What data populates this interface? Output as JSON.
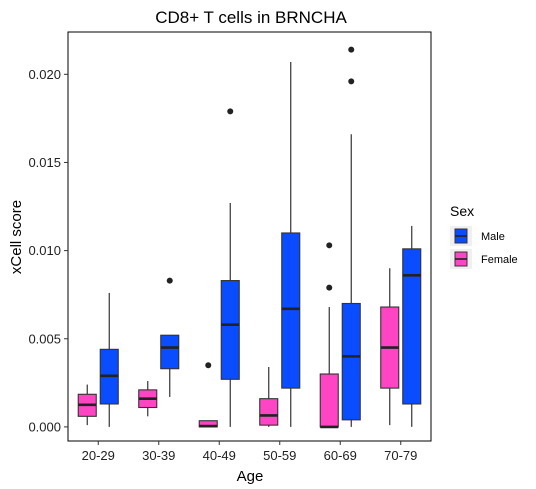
{
  "chart_data": {
    "type": "boxplot",
    "title": "CD8+ T cells in BRNCHA",
    "xlabel": "Age",
    "ylabel": "xCell score",
    "categories": [
      "20-29",
      "30-39",
      "40-49",
      "50-59",
      "60-69",
      "70-79"
    ],
    "ylim": [
      -0.0008,
      0.0224
    ],
    "yticks": [
      0.0,
      0.005,
      0.01,
      0.015,
      0.02
    ],
    "ytick_labels": [
      "0.000",
      "0.005",
      "0.010",
      "0.015",
      "0.020"
    ],
    "grid": false,
    "legend": {
      "title": "Sex",
      "placement": "right",
      "entries": [
        {
          "label": "Male",
          "color": "#0a4cff"
        },
        {
          "label": "Female",
          "color": "#ff44c4"
        }
      ]
    },
    "series": [
      {
        "name": "Female",
        "color": "#ff44c4",
        "boxes": [
          {
            "category": "20-29",
            "whisker_low": 0.0001,
            "q1": 0.0006,
            "median": 0.00125,
            "q3": 0.00185,
            "whisker_high": 0.0024,
            "outliers": []
          },
          {
            "category": "30-39",
            "whisker_low": 0.0006,
            "q1": 0.0011,
            "median": 0.0016,
            "q3": 0.0021,
            "whisker_high": 0.0026,
            "outliers": []
          },
          {
            "category": "40-49",
            "whisker_low": 0.0,
            "q1": 0.0,
            "median": 5e-05,
            "q3": 0.00035,
            "whisker_high": 0.00035,
            "outliers": [
              0.0035
            ]
          },
          {
            "category": "50-59",
            "whisker_low": 0.0,
            "q1": 0.0001,
            "median": 0.00065,
            "q3": 0.0016,
            "whisker_high": 0.0034,
            "outliers": []
          },
          {
            "category": "60-69",
            "whisker_low": 0.0,
            "q1": 0.0,
            "median": 0.0,
            "q3": 0.003,
            "whisker_high": 0.0068,
            "outliers": [
              0.0079,
              0.0103
            ]
          },
          {
            "category": "70-79",
            "whisker_low": 0.0001,
            "q1": 0.0022,
            "median": 0.0045,
            "q3": 0.0068,
            "whisker_high": 0.009,
            "outliers": []
          }
        ]
      },
      {
        "name": "Male",
        "color": "#0a4cff",
        "boxes": [
          {
            "category": "20-29",
            "whisker_low": 0.0,
            "q1": 0.0013,
            "median": 0.0029,
            "q3": 0.0044,
            "whisker_high": 0.0076,
            "outliers": []
          },
          {
            "category": "30-39",
            "whisker_low": 0.0017,
            "q1": 0.0033,
            "median": 0.0045,
            "q3": 0.0052,
            "whisker_high": 0.0052,
            "outliers": [
              0.0083
            ]
          },
          {
            "category": "40-49",
            "whisker_low": 0.0,
            "q1": 0.0027,
            "median": 0.0058,
            "q3": 0.0083,
            "whisker_high": 0.0127,
            "outliers": [
              0.0179
            ]
          },
          {
            "category": "50-59",
            "whisker_low": 0.0,
            "q1": 0.0022,
            "median": 0.0067,
            "q3": 0.011,
            "whisker_high": 0.0207,
            "outliers": []
          },
          {
            "category": "60-69",
            "whisker_low": 0.0,
            "q1": 0.0004,
            "median": 0.004,
            "q3": 0.007,
            "whisker_high": 0.0166,
            "outliers": [
              0.0196,
              0.0214
            ]
          },
          {
            "category": "70-79",
            "whisker_low": 0.0,
            "q1": 0.0013,
            "median": 0.0086,
            "q3": 0.0101,
            "whisker_high": 0.0114,
            "outliers": []
          }
        ]
      }
    ]
  }
}
